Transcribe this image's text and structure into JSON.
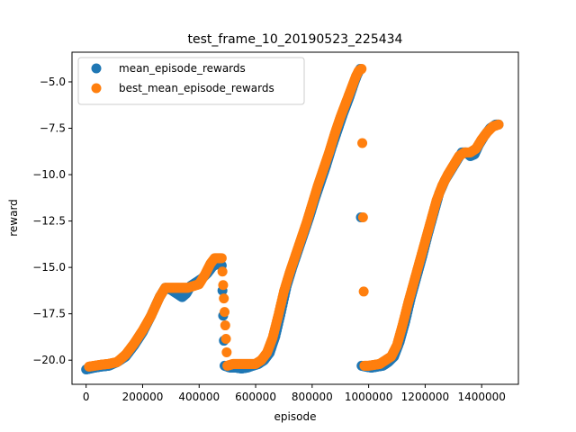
{
  "chart_data": {
    "type": "scatter",
    "title": "test_frame_10_20190523_225434",
    "xlabel": "episode",
    "ylabel": "reward",
    "xlim": [
      -50000,
      1530000
    ],
    "ylim": [
      -21.3,
      -3.4
    ],
    "grid": false,
    "legend_position": "top-left",
    "xticks": [
      0,
      200000,
      400000,
      600000,
      800000,
      1000000,
      1200000,
      1400000
    ],
    "xtick_labels": [
      "0",
      "200000",
      "400000",
      "600000",
      "800000",
      "1000000",
      "1200000",
      "1400000"
    ],
    "yticks": [
      -20.0,
      -17.5,
      -15.0,
      -12.5,
      -10.0,
      -7.5,
      -5.0
    ],
    "ytick_labels": [
      "−20.0",
      "−17.5",
      "−15.0",
      "−12.5",
      "−10.0",
      "−7.5",
      "−5.0"
    ],
    "series": [
      {
        "name": "mean_episode_rewards",
        "color": "#1f77b4",
        "points": [
          [
            0,
            -20.5
          ],
          [
            15000,
            -20.45
          ],
          [
            30000,
            -20.4
          ],
          [
            50000,
            -20.35
          ],
          [
            80000,
            -20.3
          ],
          [
            110000,
            -20.1
          ],
          [
            140000,
            -19.8
          ],
          [
            170000,
            -19.2
          ],
          [
            200000,
            -18.5
          ],
          [
            230000,
            -17.6
          ],
          [
            260000,
            -16.6
          ],
          [
            280000,
            -16.1
          ],
          [
            300000,
            -16.2
          ],
          [
            320000,
            -16.4
          ],
          [
            340000,
            -16.6
          ],
          [
            355000,
            -16.4
          ],
          [
            370000,
            -16.0
          ],
          [
            390000,
            -15.8
          ],
          [
            410000,
            -15.6
          ],
          [
            430000,
            -15.3
          ],
          [
            450000,
            -14.9
          ],
          [
            470000,
            -14.8
          ],
          [
            480000,
            -14.9
          ],
          [
            490000,
            -20.3
          ],
          [
            510000,
            -20.4
          ],
          [
            530000,
            -20.4
          ],
          [
            550000,
            -20.45
          ],
          [
            570000,
            -20.4
          ],
          [
            590000,
            -20.3
          ],
          [
            610000,
            -20.2
          ],
          [
            630000,
            -20.0
          ],
          [
            650000,
            -19.6
          ],
          [
            670000,
            -18.7
          ],
          [
            690000,
            -17.4
          ],
          [
            710000,
            -16.0
          ],
          [
            730000,
            -15.0
          ],
          [
            750000,
            -14.1
          ],
          [
            770000,
            -13.2
          ],
          [
            790000,
            -12.3
          ],
          [
            810000,
            -11.3
          ],
          [
            830000,
            -10.4
          ],
          [
            850000,
            -9.5
          ],
          [
            870000,
            -8.5
          ],
          [
            890000,
            -7.6
          ],
          [
            910000,
            -6.7
          ],
          [
            930000,
            -5.9
          ],
          [
            950000,
            -5.0
          ],
          [
            960000,
            -4.6
          ],
          [
            970000,
            -4.3
          ],
          [
            975000,
            -20.3
          ],
          [
            990000,
            -20.35
          ],
          [
            1010000,
            -20.4
          ],
          [
            1030000,
            -20.35
          ],
          [
            1050000,
            -20.3
          ],
          [
            1070000,
            -20.1
          ],
          [
            1090000,
            -19.8
          ],
          [
            1110000,
            -19.0
          ],
          [
            1130000,
            -17.9
          ],
          [
            1150000,
            -16.6
          ],
          [
            1170000,
            -15.5
          ],
          [
            1190000,
            -14.4
          ],
          [
            1210000,
            -13.2
          ],
          [
            1230000,
            -12.1
          ],
          [
            1250000,
            -11.0
          ],
          [
            1270000,
            -10.3
          ],
          [
            1290000,
            -9.8
          ],
          [
            1310000,
            -9.3
          ],
          [
            1330000,
            -8.8
          ],
          [
            1345000,
            -8.8
          ],
          [
            1360000,
            -9.0
          ],
          [
            1375000,
            -8.9
          ],
          [
            1390000,
            -8.4
          ],
          [
            1410000,
            -7.9
          ],
          [
            1430000,
            -7.5
          ],
          [
            1450000,
            -7.3
          ],
          [
            1460000,
            -7.3
          ]
        ]
      },
      {
        "name": "best_mean_episode_rewards",
        "color": "#ff7f0e",
        "points": [
          [
            10000,
            -20.35
          ],
          [
            30000,
            -20.3
          ],
          [
            50000,
            -20.25
          ],
          [
            80000,
            -20.2
          ],
          [
            110000,
            -20.1
          ],
          [
            140000,
            -19.7
          ],
          [
            170000,
            -19.1
          ],
          [
            200000,
            -18.4
          ],
          [
            230000,
            -17.6
          ],
          [
            260000,
            -16.6
          ],
          [
            280000,
            -16.1
          ],
          [
            300000,
            -16.1
          ],
          [
            320000,
            -16.1
          ],
          [
            340000,
            -16.1
          ],
          [
            360000,
            -16.1
          ],
          [
            380000,
            -16.0
          ],
          [
            400000,
            -15.9
          ],
          [
            420000,
            -15.4
          ],
          [
            440000,
            -14.8
          ],
          [
            455000,
            -14.5
          ],
          [
            470000,
            -14.5
          ],
          [
            480000,
            -14.5
          ],
          [
            500000,
            -20.3
          ],
          [
            520000,
            -20.2
          ],
          [
            540000,
            -20.2
          ],
          [
            560000,
            -20.2
          ],
          [
            580000,
            -20.2
          ],
          [
            600000,
            -20.2
          ],
          [
            620000,
            -20.0
          ],
          [
            640000,
            -19.6
          ],
          [
            660000,
            -18.8
          ],
          [
            680000,
            -17.6
          ],
          [
            700000,
            -16.3
          ],
          [
            720000,
            -15.3
          ],
          [
            740000,
            -14.4
          ],
          [
            760000,
            -13.5
          ],
          [
            780000,
            -12.6
          ],
          [
            800000,
            -11.6
          ],
          [
            820000,
            -10.6
          ],
          [
            840000,
            -9.7
          ],
          [
            860000,
            -8.8
          ],
          [
            880000,
            -7.8
          ],
          [
            900000,
            -6.9
          ],
          [
            920000,
            -6.1
          ],
          [
            940000,
            -5.3
          ],
          [
            955000,
            -4.7
          ],
          [
            965000,
            -4.4
          ],
          [
            975000,
            -4.3
          ],
          [
            985000,
            -20.3
          ],
          [
            1000000,
            -20.3
          ],
          [
            1020000,
            -20.25
          ],
          [
            1040000,
            -20.2
          ],
          [
            1060000,
            -20.0
          ],
          [
            1080000,
            -19.8
          ],
          [
            1100000,
            -19.2
          ],
          [
            1120000,
            -18.1
          ],
          [
            1140000,
            -16.9
          ],
          [
            1160000,
            -15.8
          ],
          [
            1180000,
            -14.7
          ],
          [
            1200000,
            -13.6
          ],
          [
            1220000,
            -12.5
          ],
          [
            1240000,
            -11.4
          ],
          [
            1260000,
            -10.6
          ],
          [
            1280000,
            -10.0
          ],
          [
            1300000,
            -9.5
          ],
          [
            1320000,
            -9.0
          ],
          [
            1340000,
            -8.8
          ],
          [
            1360000,
            -8.8
          ],
          [
            1380000,
            -8.6
          ],
          [
            1400000,
            -8.1
          ],
          [
            1420000,
            -7.7
          ],
          [
            1440000,
            -7.4
          ],
          [
            1460000,
            -7.3
          ]
        ]
      }
    ]
  }
}
